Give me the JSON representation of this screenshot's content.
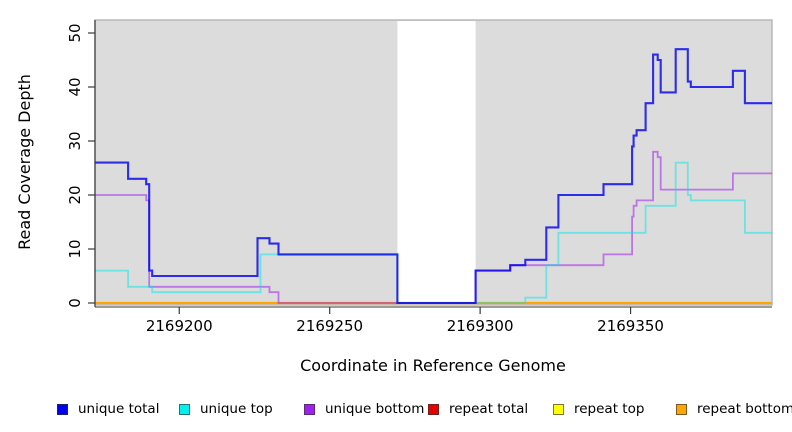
{
  "chart_data": {
    "type": "line",
    "step": true,
    "xlabel": "Coordinate in Reference Genome",
    "ylabel": "Read Coverage Depth",
    "xlim": [
      2169172,
      2169397
    ],
    "ylim": [
      0,
      52.5
    ],
    "x_ticks": [
      2169200,
      2169250,
      2169300,
      2169350
    ],
    "y_ticks": [
      0,
      10,
      20,
      30,
      40,
      50
    ],
    "gap_region": [
      2169272.5,
      2169298.5
    ],
    "plot_bg": "#dcdcdc",
    "plot_border": "#b5b5b5",
    "axis_color": "#3a3a3a",
    "grid": false,
    "legend_position": "bottom",
    "series": [
      {
        "name": "repeat top",
        "color": "#ffff00",
        "opacity": 1,
        "width": 1.6,
        "points": [
          [
            2169172,
            0
          ]
        ]
      },
      {
        "name": "repeat total",
        "color": "#dd0000",
        "opacity": 1,
        "width": 1.6,
        "points": [
          [
            2169172,
            0
          ]
        ]
      },
      {
        "name": "repeat bottom",
        "color": "#ffa500",
        "opacity": 1,
        "width": 2.2,
        "points": [
          [
            2169172,
            0
          ]
        ]
      },
      {
        "name": "unique bottom",
        "color": "#a020f0",
        "opacity": 0.55,
        "width": 1.8,
        "points": [
          [
            2169172,
            20
          ],
          [
            2169189,
            19
          ],
          [
            2169190,
            3
          ],
          [
            2169230,
            2
          ],
          [
            2169233,
            0
          ],
          [
            2169298.5,
            6
          ],
          [
            2169310,
            7
          ],
          [
            2169341,
            9
          ],
          [
            2169350.5,
            16
          ],
          [
            2169351,
            18
          ],
          [
            2169352,
            19
          ],
          [
            2169357.5,
            28
          ],
          [
            2169359,
            27
          ],
          [
            2169360,
            21
          ],
          [
            2169384,
            24
          ]
        ]
      },
      {
        "name": "unique top",
        "color": "#00e5e5",
        "opacity": 0.5,
        "width": 1.8,
        "points": [
          [
            2169172,
            6
          ],
          [
            2169183,
            3
          ],
          [
            2169191,
            2
          ],
          [
            2169227,
            9
          ],
          [
            2169272.5,
            0
          ],
          [
            2169315,
            1
          ],
          [
            2169322,
            7
          ],
          [
            2169326,
            13
          ],
          [
            2169355,
            18
          ],
          [
            2169365,
            26
          ],
          [
            2169369,
            20
          ],
          [
            2169370,
            19
          ],
          [
            2169388,
            13
          ]
        ]
      },
      {
        "name": "unique total",
        "color": "#0000ee",
        "opacity": 0.8,
        "width": 2.1,
        "points": [
          [
            2169172,
            26
          ],
          [
            2169183,
            23
          ],
          [
            2169189,
            22
          ],
          [
            2169190,
            6
          ],
          [
            2169191,
            5
          ],
          [
            2169226,
            12
          ],
          [
            2169230,
            11
          ],
          [
            2169233,
            9
          ],
          [
            2169272.5,
            0
          ],
          [
            2169298.5,
            6
          ],
          [
            2169310,
            7
          ],
          [
            2169315,
            8
          ],
          [
            2169322,
            14
          ],
          [
            2169326,
            20
          ],
          [
            2169341,
            22
          ],
          [
            2169350.5,
            29
          ],
          [
            2169351,
            31
          ],
          [
            2169352,
            32
          ],
          [
            2169355,
            37
          ],
          [
            2169357.5,
            46
          ],
          [
            2169359,
            45
          ],
          [
            2169360,
            39
          ],
          [
            2169365,
            47
          ],
          [
            2169369,
            41
          ],
          [
            2169370,
            40
          ],
          [
            2169384,
            43
          ],
          [
            2169388,
            37
          ]
        ]
      }
    ],
    "legend": [
      {
        "label": "unique total",
        "color": "#0000ee"
      },
      {
        "label": "unique top",
        "color": "#00efef"
      },
      {
        "label": "unique bottom",
        "color": "#a020f0"
      },
      {
        "label": "repeat total",
        "color": "#e60000"
      },
      {
        "label": "repeat top",
        "color": "#ffff00"
      },
      {
        "label": "repeat bottom",
        "color": "#ffa500"
      }
    ]
  }
}
